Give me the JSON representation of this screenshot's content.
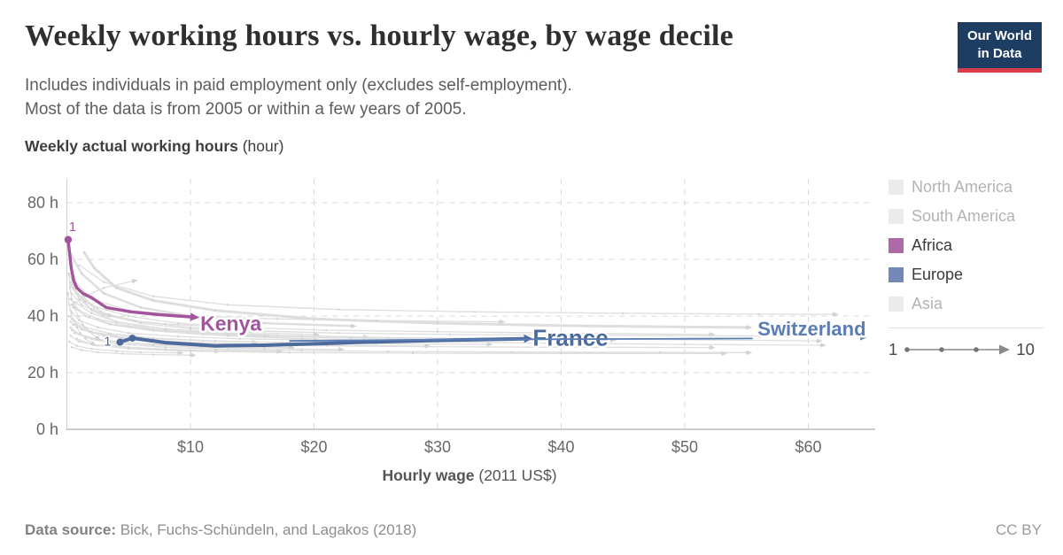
{
  "header": {
    "title": "Weekly working hours vs. hourly wage, by wage decile",
    "subtitle_line1": "Includes individuals in paid employment only (excludes self-employment).",
    "subtitle_line2": "Most of the data is from 2005 or within a few years of 2005.",
    "logo": {
      "line1": "Our World",
      "line2": "in Data",
      "bg_color": "#1d3d63",
      "accent_color": "#d93b48",
      "text_color": "#ffffff"
    }
  },
  "chart_data": {
    "type": "line",
    "subtype": "connected-scatter-by-decile",
    "title": "Weekly working hours vs. hourly wage, by wage decile",
    "ylabel_bold": "Weekly actual working hours",
    "ylabel_unit": " (hour)",
    "xlabel_bold": "Hourly wage",
    "xlabel_unit": " (2011 US$)",
    "xlim": [
      0,
      65.2
    ],
    "ylim": [
      0,
      88.5
    ],
    "grid": "dashed",
    "x_ticks": [
      {
        "value": 10,
        "label": "$10"
      },
      {
        "value": 20,
        "label": "$20"
      },
      {
        "value": 30,
        "label": "$30"
      },
      {
        "value": 40,
        "label": "$40"
      },
      {
        "value": 50,
        "label": "$50"
      },
      {
        "value": 60,
        "label": "$60"
      }
    ],
    "y_ticks": [
      {
        "value": 0,
        "label": "0 h"
      },
      {
        "value": 20,
        "label": "20 h"
      },
      {
        "value": 40,
        "label": "40 h"
      },
      {
        "value": 60,
        "label": "60 h"
      },
      {
        "value": 80,
        "label": "80 h"
      }
    ],
    "colors": {
      "grid": "#d9d9d9",
      "axis": "#999999",
      "axis_left": "#cfcfcf",
      "tick_text": "#686868",
      "background_line": "#dcdcdc",
      "africa": "#a2559c",
      "europe": "#4c6a9c"
    },
    "series": [
      {
        "name": "Kenya",
        "continent": "Africa",
        "color": "#a2559c",
        "width": 3.4,
        "x": [
          0.1,
          0.35,
          0.55,
          0.8,
          1.3,
          2.0,
          3.2,
          5.2,
          7.5,
          10.0
        ],
        "y": [
          67,
          57,
          52.5,
          50,
          48,
          46.5,
          43,
          41.5,
          40.5,
          39.7
        ],
        "dots": [
          0
        ],
        "dot_radius": 4.2,
        "start_marker": {
          "text": "1",
          "dx": 5,
          "dy": -10
        },
        "label": {
          "text": "Kenya",
          "x": 10.8,
          "y": 34.9,
          "size": 23
        },
        "arrow": true
      },
      {
        "name": "France",
        "continent": "Europe",
        "color": "#4c6a9c",
        "width": 4,
        "x": [
          4.3,
          5.3,
          8,
          12,
          16,
          20,
          24,
          28,
          32,
          37
        ],
        "y": [
          30.8,
          32.2,
          30.6,
          29.5,
          29.7,
          30.2,
          30.8,
          31.2,
          31.6,
          32.0
        ],
        "dots": [
          0,
          1
        ],
        "dot_radius": 4,
        "start_marker": {
          "text": "1",
          "dx": -14,
          "dy": 4
        },
        "label": {
          "text": "France",
          "x": 37.7,
          "y": 29.6,
          "size": 26
        },
        "arrow": true
      },
      {
        "name": "Switzerland",
        "continent": "Europe",
        "color": "#5b7db5",
        "width": 1.8,
        "x": [
          18,
          25,
          32,
          38,
          44,
          50,
          55.5
        ],
        "y": [
          31.2,
          31.5,
          31.7,
          31.8,
          31.9,
          32.0,
          32.1
        ],
        "dots": [],
        "dot_radius": 0,
        "label": {
          "text": "Switzerland",
          "x": 55.9,
          "y": 33.2,
          "size": 22
        },
        "arrow": false,
        "detached_arrow": {
          "x": 64.2,
          "y": 32.4
        }
      }
    ],
    "background_series": [
      {
        "w": 2.5,
        "x": [
          0.3,
          1.2,
          3,
          6,
          10,
          16,
          23
        ],
        "y": [
          62,
          55,
          48,
          43,
          40,
          37.5,
          36.5
        ]
      },
      {
        "w": 3,
        "x": [
          1.4,
          2.2,
          4,
          7,
          12,
          20,
          30,
          42,
          55
        ],
        "y": [
          62.5,
          57,
          50,
          45.5,
          42,
          39,
          37.5,
          36.5,
          36
        ]
      },
      {
        "x": [
          0.2,
          0.8,
          2,
          4,
          7,
          11,
          16
        ],
        "y": [
          55,
          48,
          42,
          38,
          35.5,
          34,
          33
        ]
      },
      {
        "x": [
          0.3,
          1,
          2.5,
          5,
          9,
          14,
          21,
          30,
          40,
          52
        ],
        "y": [
          52,
          47,
          43,
          40,
          37.5,
          36,
          35,
          34.5,
          34,
          33.5
        ]
      },
      {
        "x": [
          0.5,
          1.5,
          3,
          6,
          10,
          15,
          22,
          31,
          43,
          56
        ],
        "y": [
          50,
          45,
          41,
          38,
          36,
          34.8,
          34,
          33.5,
          33.2,
          33
        ]
      },
      {
        "x": [
          0.4,
          1.2,
          3,
          6,
          10,
          15,
          20
        ],
        "y": [
          48,
          44,
          40.5,
          37.5,
          35.5,
          34.2,
          33.5
        ]
      },
      {
        "x": [
          0.3,
          1,
          2.5,
          5,
          8,
          12,
          17,
          24
        ],
        "y": [
          46,
          42,
          39,
          36.5,
          35,
          34,
          33.2,
          32.6
        ]
      },
      {
        "x": [
          0.6,
          2,
          4,
          8,
          13,
          19,
          26,
          35,
          46,
          60.7
        ],
        "y": [
          45,
          41,
          38,
          35.5,
          34,
          33,
          32.4,
          32,
          31.8,
          31.2
        ]
      },
      {
        "x": [
          0.4,
          1.5,
          3.5,
          7,
          11,
          16,
          23,
          32,
          44
        ],
        "y": [
          44,
          40,
          37,
          34.8,
          33.5,
          32.8,
          32.2,
          31.8,
          31.5
        ]
      },
      {
        "x": [
          0.5,
          1.8,
          4,
          8,
          13,
          19,
          27,
          38,
          50,
          61
        ],
        "y": [
          43,
          39.5,
          36.8,
          34.6,
          33,
          32,
          31.2,
          30.5,
          30,
          29.7
        ]
      },
      {
        "x": [
          0.3,
          1,
          2.5,
          5,
          9,
          14,
          20
        ],
        "y": [
          42,
          38.5,
          36,
          34,
          32.8,
          32,
          31.5
        ]
      },
      {
        "x": [
          0.2,
          0.8,
          2,
          4,
          7,
          11,
          15
        ],
        "y": [
          40,
          37,
          34.5,
          33,
          32,
          31.3,
          30.8
        ]
      },
      {
        "x": [
          0.4,
          1.5,
          3.5,
          7,
          12,
          18,
          25,
          34
        ],
        "y": [
          39,
          36,
          33.8,
          32.2,
          31.2,
          30.6,
          30.2,
          30
        ]
      },
      {
        "x": [
          0.3,
          1.2,
          3,
          6,
          10,
          15,
          21,
          29
        ],
        "y": [
          38,
          35.2,
          33,
          31.6,
          30.7,
          30.1,
          29.7,
          29.4
        ]
      },
      {
        "x": [
          0.5,
          2,
          4.5,
          9,
          14,
          21,
          29,
          40,
          52
        ],
        "y": [
          37,
          34.2,
          32.2,
          30.8,
          30,
          29.5,
          29.2,
          29,
          28.9
        ]
      },
      {
        "x": [
          0.3,
          1,
          2.5,
          5,
          9,
          13,
          18
        ],
        "y": [
          36,
          33.5,
          31.8,
          30.5,
          29.7,
          29.2,
          28.9
        ]
      },
      {
        "x": [
          0.4,
          1.5,
          3.5,
          7,
          11,
          16,
          22
        ],
        "y": [
          35,
          32.8,
          31,
          29.8,
          29,
          28.5,
          28.2
        ]
      },
      {
        "x": [
          0.6,
          2,
          4,
          8,
          13,
          19,
          26,
          36,
          48,
          55
        ],
        "y": [
          34,
          31.8,
          30.2,
          29,
          28.2,
          27.8,
          27.5,
          27.3,
          27.2,
          27.1
        ]
      },
      {
        "x": [
          0.3,
          1,
          2.5,
          5,
          8,
          12
        ],
        "y": [
          33,
          31,
          29.6,
          28.6,
          28,
          27.6
        ]
      },
      {
        "x": [
          0.2,
          0.8,
          2,
          4,
          6,
          9
        ],
        "y": [
          31,
          29.5,
          28.4,
          27.6,
          27.2,
          27
        ]
      },
      {
        "x": [
          0.4,
          1.2,
          2.5,
          4.5,
          7,
          10
        ],
        "y": [
          29,
          28,
          27.2,
          26.7,
          26.4,
          26.2
        ]
      },
      {
        "x": [
          0.3,
          0.7,
          1.3,
          2.2,
          3.3
        ],
        "y": [
          58,
          52,
          47,
          43,
          40.5
        ]
      },
      {
        "x": [
          0.5,
          1.5,
          3,
          5.3
        ],
        "y": [
          44,
          47,
          50,
          52.3
        ]
      },
      {
        "x": [
          0.5,
          2,
          5,
          10,
          17,
          25,
          35
        ],
        "y": [
          53,
          46,
          42,
          40,
          39,
          38.4,
          38
        ]
      },
      {
        "x": [
          1,
          3,
          7,
          13,
          22,
          33,
          45,
          56,
          62
        ],
        "y": [
          58,
          52,
          47,
          44,
          42.3,
          41.5,
          41,
          40.7,
          40.6
        ]
      },
      {
        "x": [
          0.8,
          2,
          5,
          10,
          18,
          28,
          40,
          53
        ],
        "y": [
          32,
          30,
          28.5,
          27.6,
          27.1,
          26.9,
          26.8,
          26.8
        ]
      },
      {
        "x": [
          3,
          5,
          8,
          12,
          17
        ],
        "y": [
          30,
          29,
          28.3,
          27.8,
          27.5
        ]
      },
      {
        "x": [
          0.3,
          1,
          2,
          3.5,
          5.5,
          8,
          11
        ],
        "y": [
          51,
          46,
          42.5,
          40,
          38.3,
          37.2,
          36.5
        ]
      },
      {
        "x": [
          0.15,
          0.25,
          0.4,
          0.6,
          0.9,
          1.3,
          1.8,
          2.4
        ],
        "y": [
          55,
          50,
          46,
          43,
          40,
          37,
          34.5,
          32.5
        ]
      },
      {
        "x": [
          0.1,
          0.2,
          0.35,
          0.55,
          0.8,
          1.1,
          1.5,
          2
        ],
        "y": [
          48,
          44,
          41,
          38.5,
          36,
          34,
          32,
          30.5
        ]
      }
    ]
  },
  "legend": {
    "items": [
      {
        "label": "North America",
        "swatch": "#ebebeb",
        "text_color": "#b3b3b3",
        "active": false
      },
      {
        "label": "South America",
        "swatch": "#ebebeb",
        "text_color": "#b3b3b3",
        "active": false
      },
      {
        "label": "Africa",
        "swatch": "#ad6aa6",
        "text_color": "#3a3a3a",
        "active": true
      },
      {
        "label": "Europe",
        "swatch": "#7289b7",
        "text_color": "#3a3a3a",
        "active": true
      },
      {
        "label": "Asia",
        "swatch": "#ebebeb",
        "text_color": "#b3b3b3",
        "active": false
      }
    ],
    "decile_scale": {
      "start": "1",
      "end": "10"
    }
  },
  "footer": {
    "source_label": "Data source:",
    "source_text": "Bick, Fuchs-Schündeln, and Lagakos (2018)",
    "license": "CC BY"
  }
}
